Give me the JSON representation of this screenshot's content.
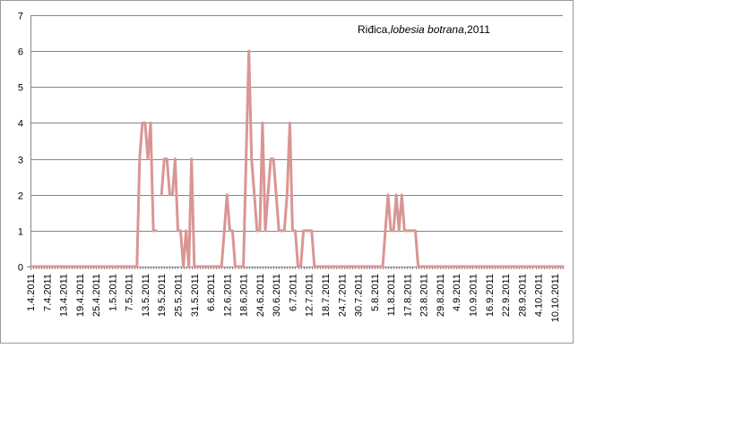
{
  "chart_data": {
    "type": "line",
    "title_parts": [
      {
        "text": "Riđica,",
        "italic": false
      },
      {
        "text": "lobesia botrana",
        "italic": true
      },
      {
        "text": ",2011",
        "italic": false
      }
    ],
    "xlabel": "",
    "ylabel": "",
    "ylim": [
      0,
      7
    ],
    "yticks": [
      0,
      1,
      2,
      3,
      4,
      5,
      6,
      7
    ],
    "xlim": [
      "1.4.2011",
      "13.10.2011"
    ],
    "xtick_labels": [
      "1.4.2011",
      "7.4.2011",
      "13.4.2011",
      "19.4.2011",
      "25.4.2011",
      "1.5.2011",
      "7.5.2011",
      "13.5.2011",
      "19.5.2011",
      "25.5.2011",
      "31.5.2011",
      "6.6.2011",
      "12.6.2011",
      "18.6.2011",
      "24.6.2011",
      "30.6.2011",
      "6.7.2011",
      "12.7.2011",
      "18.7.2011",
      "24.7.2011",
      "30.7.2011",
      "5.8.2011",
      "11.8.2011",
      "17.8.2011",
      "23.8.2011",
      "29.8.2011",
      "4.9.2011",
      "10.9.2011",
      "16.9.2011",
      "22.9.2011",
      "28.9.2011",
      "4.10.2011",
      "10.10.2011"
    ],
    "grid": true,
    "legend": false,
    "series_color": "#d99694",
    "series": [
      {
        "points": [
          [
            "1.4.2011",
            0
          ],
          [
            "9.5.2011",
            0
          ],
          [
            "10.5.2011",
            0
          ],
          [
            "11.5.2011",
            3
          ],
          [
            "12.5.2011",
            4
          ],
          [
            "13.5.2011",
            4
          ],
          [
            "14.5.2011",
            3
          ],
          [
            "15.5.2011",
            4
          ],
          [
            "16.5.2011",
            1
          ],
          [
            "17.5.2011",
            1
          ],
          [
            "18.5.2011",
            null
          ],
          [
            "19.5.2011",
            2
          ],
          [
            "20.5.2011",
            3
          ],
          [
            "21.5.2011",
            3
          ],
          [
            "22.5.2011",
            2
          ],
          [
            "23.5.2011",
            2
          ],
          [
            "24.5.2011",
            3
          ],
          [
            "25.5.2011",
            1
          ],
          [
            "26.5.2011",
            1
          ],
          [
            "27.5.2011",
            0
          ],
          [
            "28.5.2011",
            1
          ],
          [
            "29.5.2011",
            0
          ],
          [
            "30.5.2011",
            3
          ],
          [
            "31.5.2011",
            0
          ],
          [
            "10.6.2011",
            0
          ],
          [
            "11.6.2011",
            1
          ],
          [
            "12.6.2011",
            2
          ],
          [
            "13.6.2011",
            1
          ],
          [
            "14.6.2011",
            1
          ],
          [
            "15.6.2011",
            0
          ],
          [
            "18.6.2011",
            0
          ],
          [
            "19.6.2011",
            3
          ],
          [
            "20.6.2011",
            6
          ],
          [
            "21.6.2011",
            3
          ],
          [
            "22.6.2011",
            2
          ],
          [
            "23.6.2011",
            1
          ],
          [
            "24.6.2011",
            1
          ],
          [
            "25.6.2011",
            4
          ],
          [
            "26.6.2011",
            1
          ],
          [
            "27.6.2011",
            2
          ],
          [
            "28.6.2011",
            3
          ],
          [
            "29.6.2011",
            3
          ],
          [
            "30.6.2011",
            2
          ],
          [
            "1.7.2011",
            1
          ],
          [
            "2.7.2011",
            1
          ],
          [
            "3.7.2011",
            1
          ],
          [
            "4.7.2011",
            2
          ],
          [
            "5.7.2011",
            4
          ],
          [
            "6.7.2011",
            1
          ],
          [
            "7.7.2011",
            1
          ],
          [
            "8.7.2011",
            0
          ],
          [
            "9.7.2011",
            0
          ],
          [
            "10.7.2011",
            1
          ],
          [
            "11.7.2011",
            1
          ],
          [
            "12.7.2011",
            1
          ],
          [
            "13.7.2011",
            1
          ],
          [
            "14.7.2011",
            0
          ],
          [
            "8.8.2011",
            0
          ],
          [
            "9.8.2011",
            1
          ],
          [
            "10.8.2011",
            2
          ],
          [
            "11.8.2011",
            1
          ],
          [
            "12.8.2011",
            1
          ],
          [
            "13.8.2011",
            2
          ],
          [
            "14.8.2011",
            1
          ],
          [
            "15.8.2011",
            2
          ],
          [
            "16.8.2011",
            1
          ],
          [
            "17.8.2011",
            1
          ],
          [
            "18.8.2011",
            1
          ],
          [
            "19.8.2011",
            1
          ],
          [
            "20.8.2011",
            1
          ],
          [
            "21.8.2011",
            0
          ],
          [
            "13.10.2011",
            0
          ]
        ]
      }
    ]
  }
}
